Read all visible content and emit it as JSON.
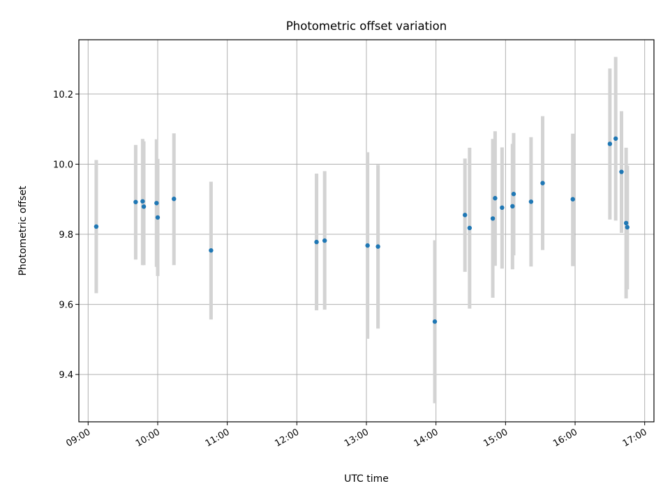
{
  "chart_data": {
    "type": "scatter",
    "title": "Photometric offset variation",
    "xlabel": "UTC time",
    "ylabel": "Photometric offset",
    "x_ticks": [
      "09:00",
      "10:00",
      "11:00",
      "12:00",
      "13:00",
      "14:00",
      "15:00",
      "16:00",
      "17:00"
    ],
    "y_ticks": [
      "9.4",
      "9.6",
      "9.8",
      "10.0",
      "10.2"
    ],
    "xlim": [
      "08:52",
      "17:08"
    ],
    "ylim": [
      9.265,
      10.355
    ],
    "grid": true,
    "colors": {
      "points": "#1f77b4",
      "errorbars": "#d3d3d3",
      "grid": "#b0b0b0"
    },
    "points": [
      {
        "time": "09:07",
        "value": 9.822,
        "low": 9.632,
        "high": 10.012
      },
      {
        "time": "09:41",
        "value": 9.892,
        "low": 9.728,
        "high": 10.055
      },
      {
        "time": "09:47",
        "value": 9.894,
        "low": 9.712,
        "high": 10.072
      },
      {
        "time": "09:48",
        "value": 9.879,
        "low": 9.712,
        "high": 10.065
      },
      {
        "time": "09:59",
        "value": 9.889,
        "low": 9.707,
        "high": 10.071
      },
      {
        "time": "10:00",
        "value": 9.848,
        "low": 9.681,
        "high": 10.015
      },
      {
        "time": "10:14",
        "value": 9.901,
        "low": 9.712,
        "high": 10.088
      },
      {
        "time": "10:46",
        "value": 9.754,
        "low": 9.557,
        "high": 9.95
      },
      {
        "time": "12:17",
        "value": 9.778,
        "low": 9.583,
        "high": 9.973
      },
      {
        "time": "12:24",
        "value": 9.782,
        "low": 9.585,
        "high": 9.98
      },
      {
        "time": "13:01",
        "value": 9.768,
        "low": 9.502,
        "high": 10.034
      },
      {
        "time": "13:10",
        "value": 9.765,
        "low": 9.531,
        "high": 9.998
      },
      {
        "time": "13:59",
        "value": 9.551,
        "low": 9.318,
        "high": 9.783
      },
      {
        "time": "14:25",
        "value": 9.855,
        "low": 9.693,
        "high": 10.016
      },
      {
        "time": "14:29",
        "value": 9.818,
        "low": 9.588,
        "high": 10.047
      },
      {
        "time": "14:49",
        "value": 9.845,
        "low": 9.619,
        "high": 10.072
      },
      {
        "time": "14:51",
        "value": 9.903,
        "low": 9.71,
        "high": 10.094
      },
      {
        "time": "14:57",
        "value": 9.876,
        "low": 9.702,
        "high": 10.048
      },
      {
        "time": "15:06",
        "value": 9.88,
        "low": 9.7,
        "high": 10.058
      },
      {
        "time": "15:07",
        "value": 9.915,
        "low": 9.74,
        "high": 10.089
      },
      {
        "time": "15:22",
        "value": 9.893,
        "low": 9.708,
        "high": 10.077
      },
      {
        "time": "15:32",
        "value": 9.946,
        "low": 9.755,
        "high": 10.137
      },
      {
        "time": "15:58",
        "value": 9.9,
        "low": 9.709,
        "high": 10.087
      },
      {
        "time": "16:30",
        "value": 10.058,
        "low": 9.842,
        "high": 10.273
      },
      {
        "time": "16:35",
        "value": 10.073,
        "low": 9.839,
        "high": 10.306
      },
      {
        "time": "16:40",
        "value": 9.978,
        "low": 9.804,
        "high": 10.151
      },
      {
        "time": "16:44",
        "value": 9.832,
        "low": 9.617,
        "high": 10.047
      },
      {
        "time": "16:45",
        "value": 9.82,
        "low": 9.643,
        "high": 9.996
      }
    ]
  }
}
